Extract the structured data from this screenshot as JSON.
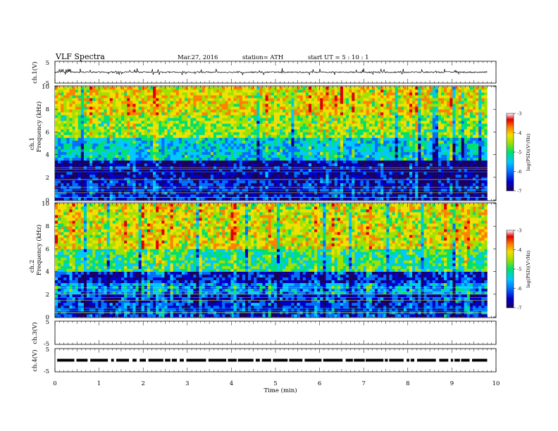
{
  "header": {
    "title": "VLF  Spectra",
    "date": "Mar.27, 2016",
    "station": "station= ATH",
    "start": "start  UT  =   5  : 10 : 1"
  },
  "axes": {
    "ch1_label": "ch.1(V)",
    "ch3_label": "ch.3(V)",
    "ch4_label": "ch.4(V)",
    "spec1_label_a": "ch.1",
    "spec2_label_a": "ch.2",
    "freq_label": "Frequency  (kHz)",
    "time_label": "Time  (min)",
    "colorbar_label": "log(PSD)(V²/Hz)"
  },
  "colors": {
    "scale": [
      "#1a0060",
      "#0000c8",
      "#0070ff",
      "#00c8ff",
      "#00e070",
      "#a0e000",
      "#f0e000",
      "#ff8000",
      "#e00000",
      "#ffffff"
    ]
  },
  "chart_data": [
    {
      "type": "line",
      "name": "ch1_waveform",
      "ylabel": "ch.1(V)",
      "ylim": [
        -5,
        5
      ],
      "yticks": [
        "5",
        "-5"
      ],
      "xlim": [
        0,
        10
      ],
      "approx_level": 0,
      "approx_range": [
        -1.2,
        1.8
      ]
    },
    {
      "type": "heatmap",
      "name": "ch1_spectrogram",
      "ylabel": "Frequency (kHz)",
      "ylim": [
        0,
        10
      ],
      "yticks": [
        "0",
        "2",
        "4",
        "6",
        "8",
        "10"
      ],
      "xlim": [
        0,
        9.8
      ],
      "colorbar": {
        "label": "log(PSD)(V²/Hz)",
        "range": [
          -7,
          -3
        ],
        "ticks": [
          "-3",
          "-4",
          "-5",
          "-6",
          "-7"
        ]
      },
      "bands": [
        {
          "f": [
            0,
            1.8
          ],
          "level": -6.3
        },
        {
          "f": [
            1.8,
            3.5
          ],
          "level": -6.6
        },
        {
          "f": [
            3.5,
            5.5
          ],
          "level": -5.4
        },
        {
          "f": [
            5.5,
            7.5
          ],
          "level": -4.6
        },
        {
          "f": [
            7.5,
            10
          ],
          "level": -4.2
        }
      ]
    },
    {
      "type": "heatmap",
      "name": "ch2_spectrogram",
      "ylabel": "Frequency (kHz)",
      "ylim": [
        0,
        10
      ],
      "yticks": [
        "0",
        "2",
        "4",
        "6",
        "8",
        "10"
      ],
      "xlim": [
        0,
        9.8
      ],
      "colorbar": {
        "label": "log(PSD)(V²/Hz)",
        "range": [
          -7,
          -3
        ],
        "ticks": [
          "-3",
          "-4",
          "-5",
          "-6",
          "-7"
        ]
      },
      "bands": [
        {
          "f": [
            0,
            2
          ],
          "level": -6.2
        },
        {
          "f": [
            2,
            3
          ],
          "level": -5.7
        },
        {
          "f": [
            3,
            4
          ],
          "level": -6.3
        },
        {
          "f": [
            4,
            6
          ],
          "level": -5.0
        },
        {
          "f": [
            6,
            10
          ],
          "level": -4.3
        }
      ]
    },
    {
      "type": "line",
      "name": "ch3_waveform",
      "ylabel": "ch.3(V)",
      "ylim": [
        -5,
        5
      ],
      "yticks": [
        "5",
        "-5"
      ],
      "xlim": [
        0,
        10
      ]
    },
    {
      "type": "line",
      "name": "ch4_waveform",
      "ylabel": "ch.4(V)",
      "ylim": [
        -5,
        5
      ],
      "yticks": [
        "5",
        "-5"
      ],
      "xlim": [
        0,
        10
      ],
      "approx_level": 0
    },
    {
      "type": "axis",
      "name": "time_axis",
      "xlabel": "Time  (min)",
      "xlim": [
        0,
        10
      ],
      "xticks": [
        "0",
        "1",
        "2",
        "3",
        "4",
        "5",
        "6",
        "7",
        "8",
        "9",
        "10"
      ]
    }
  ]
}
